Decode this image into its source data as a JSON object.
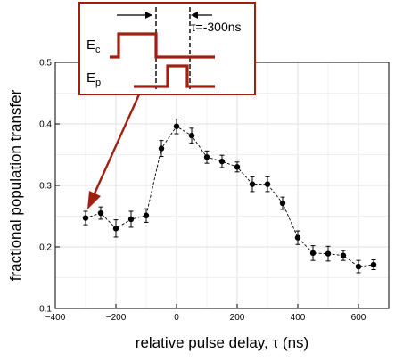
{
  "chart_data": {
    "type": "scatter",
    "title": "",
    "xlabel": "relative pulse delay, τ (ns)",
    "ylabel": "fractional population transfer",
    "xlim": [
      -400,
      700
    ],
    "ylim": [
      0.1,
      0.5
    ],
    "xticks": [
      -400,
      -200,
      0,
      200,
      400,
      600
    ],
    "yticks": [
      0.1,
      0.2,
      0.3,
      0.4,
      0.5
    ],
    "xtick_labels": [
      "−400",
      "−200",
      "0",
      "200",
      "400",
      "600"
    ],
    "ytick_labels": [
      "0.1",
      "0.2",
      "0.3",
      "0.4",
      "0.5"
    ],
    "grid": true,
    "line_style": "dashed",
    "series": [
      {
        "x": [
          -300,
          -250,
          -200,
          -150,
          -100,
          -50,
          0,
          50,
          100,
          150,
          200,
          250,
          300,
          350,
          400,
          450,
          500,
          550,
          600,
          650
        ],
        "y": [
          0.247,
          0.255,
          0.23,
          0.245,
          0.251,
          0.36,
          0.396,
          0.381,
          0.346,
          0.339,
          0.33,
          0.302,
          0.302,
          0.271,
          0.215,
          0.19,
          0.189,
          0.186,
          0.168,
          0.171
        ],
        "yerr": [
          0.011,
          0.01,
          0.014,
          0.013,
          0.011,
          0.013,
          0.012,
          0.012,
          0.01,
          0.01,
          0.008,
          0.012,
          0.012,
          0.01,
          0.011,
          0.012,
          0.012,
          0.008,
          0.01,
          0.008
        ]
      }
    ],
    "annotation": {
      "tau_label": "τ=-300ns",
      "ec_main": "E",
      "ec_sub": "c",
      "ep_main": "E",
      "ep_sub": "p",
      "arrow_target": [
        -300,
        0.247
      ],
      "colors": {
        "frame": "#a02010",
        "pulse": "#a02010",
        "arrow": "#a02010"
      }
    }
  }
}
